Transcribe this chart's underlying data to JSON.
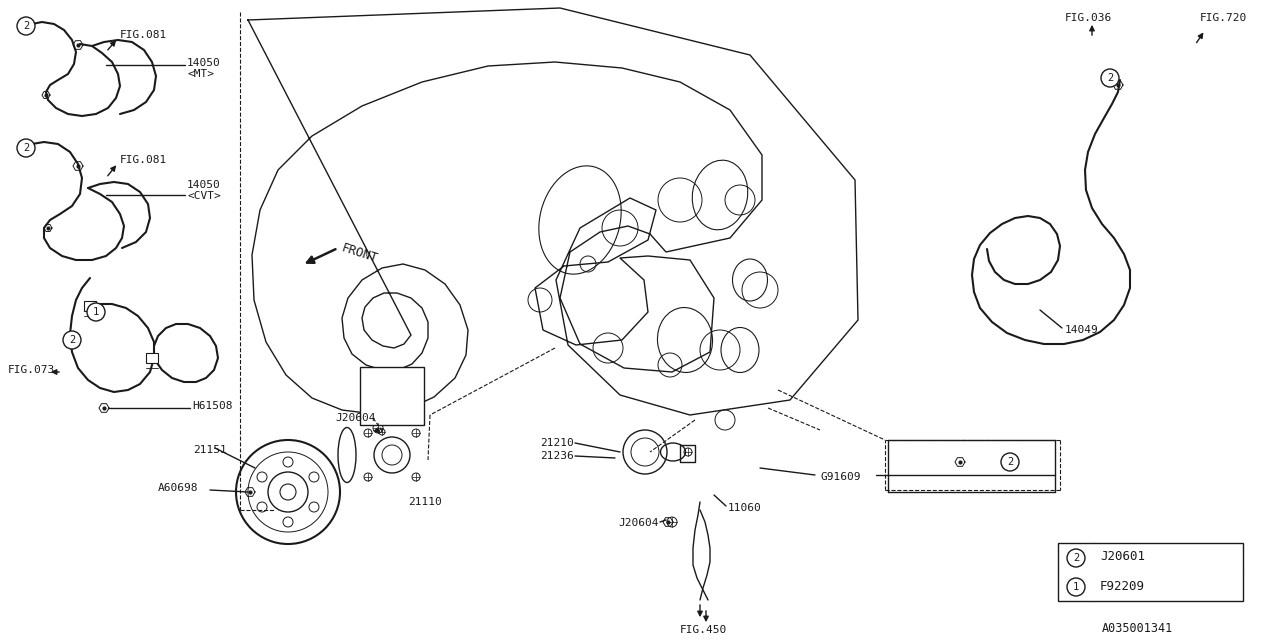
{
  "bg_color": "#ffffff",
  "line_color": "#1a1a1a",
  "fig_code": "A035001341",
  "legend": {
    "1": "F92209",
    "2": "J20601"
  },
  "lw": 1.0,
  "font_size": 8.0
}
